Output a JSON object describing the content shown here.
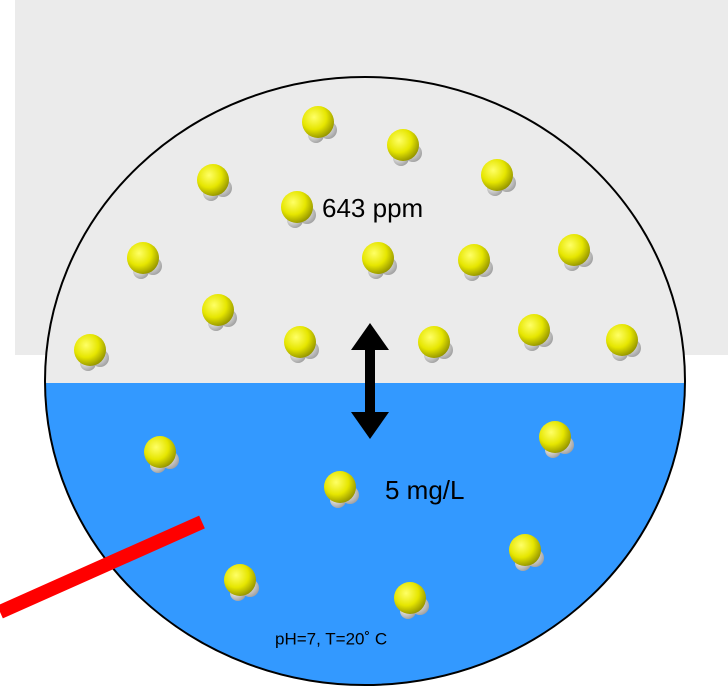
{
  "labels": {
    "gas_concentration": "643 ppm",
    "water_concentration": "5 mg/L",
    "conditions": "pH=7, T=20˚ C"
  }
}
